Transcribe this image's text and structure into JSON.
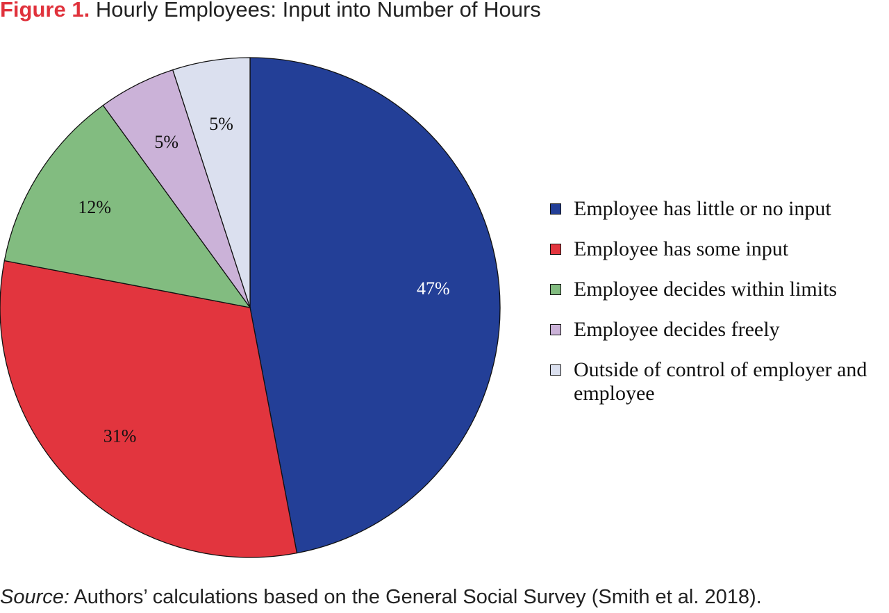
{
  "header": {
    "figure_label": "Figure 1.",
    "title": "Hourly Employees: Input into Number of Hours"
  },
  "chart_data": {
    "type": "pie",
    "categories": [
      "Employee has little or no input",
      "Employee has some input",
      "Employee decides within limits",
      "Employee decides freely",
      "Outside of control of employer and employee"
    ],
    "values": [
      47,
      31,
      12,
      5,
      5
    ],
    "labels": [
      "47%",
      "31%",
      "12%",
      "5%",
      "5%"
    ],
    "colors": [
      "#233f97",
      "#e2353e",
      "#82bc80",
      "#cbb2d8",
      "#dbe0ef"
    ],
    "label_colors": [
      "#ffffff",
      "#111111",
      "#111111",
      "#111111",
      "#111111"
    ],
    "legend_position": "right",
    "direction": "clockwise from top"
  },
  "footer": {
    "source_label": "Source:",
    "source_text": " Authors’ calculations based on the General Social Survey (Smith et al. 2018)."
  }
}
